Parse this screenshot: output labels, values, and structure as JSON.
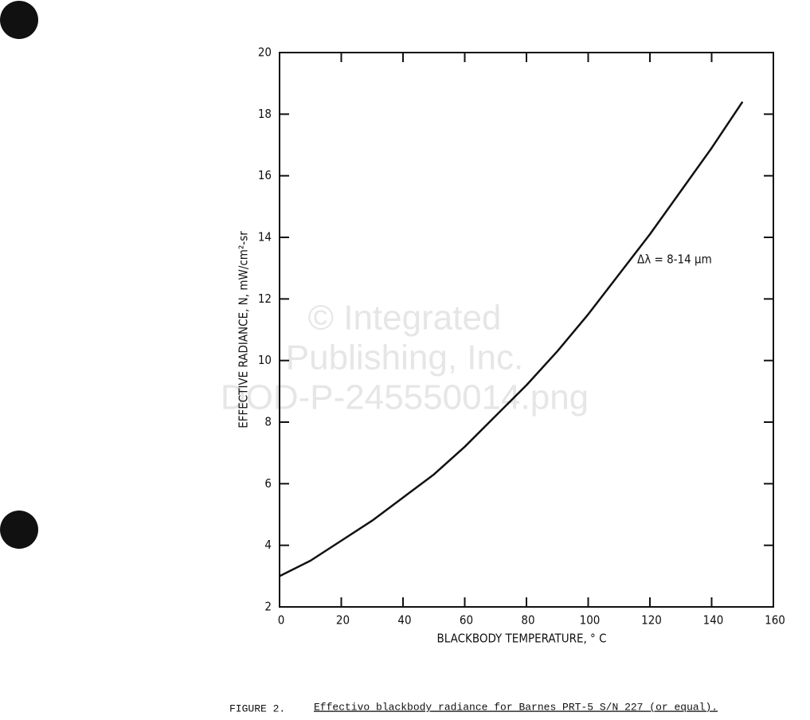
{
  "chart_data": {
    "type": "line",
    "x": [
      0,
      10,
      20,
      30,
      40,
      50,
      60,
      70,
      80,
      90,
      100,
      110,
      120,
      130,
      140,
      150
    ],
    "series": [
      {
        "color": "#111111",
        "values": [
          3.0,
          3.5,
          4.15,
          4.8,
          5.55,
          6.3,
          7.2,
          8.2,
          9.2,
          10.3,
          11.5,
          12.8,
          14.1,
          15.5,
          16.9,
          18.4
        ]
      }
    ],
    "xlim": [
      0,
      160
    ],
    "xticks": [
      0,
      20,
      40,
      60,
      80,
      100,
      120,
      140,
      160
    ],
    "ylim": [
      2,
      20
    ],
    "yticks": [
      2,
      4,
      6,
      8,
      10,
      12,
      14,
      16,
      18,
      20
    ],
    "xlabel": "BLACKBODY TEMPERATURE, ° C",
    "ylabel": "EFFECTIVE RADIANCE, N, mW/cm²-sr",
    "annotation": "Δλ = 8-14 μm",
    "figure_label": "FIGURE 2.",
    "caption": "Effectivo blackbody radiance for Barnes PRT-5 S/N 227 (or equal).",
    "watermark": [
      "© Integrated",
      "Publishing, Inc.",
      "DOD-P-245550014.png"
    ]
  }
}
